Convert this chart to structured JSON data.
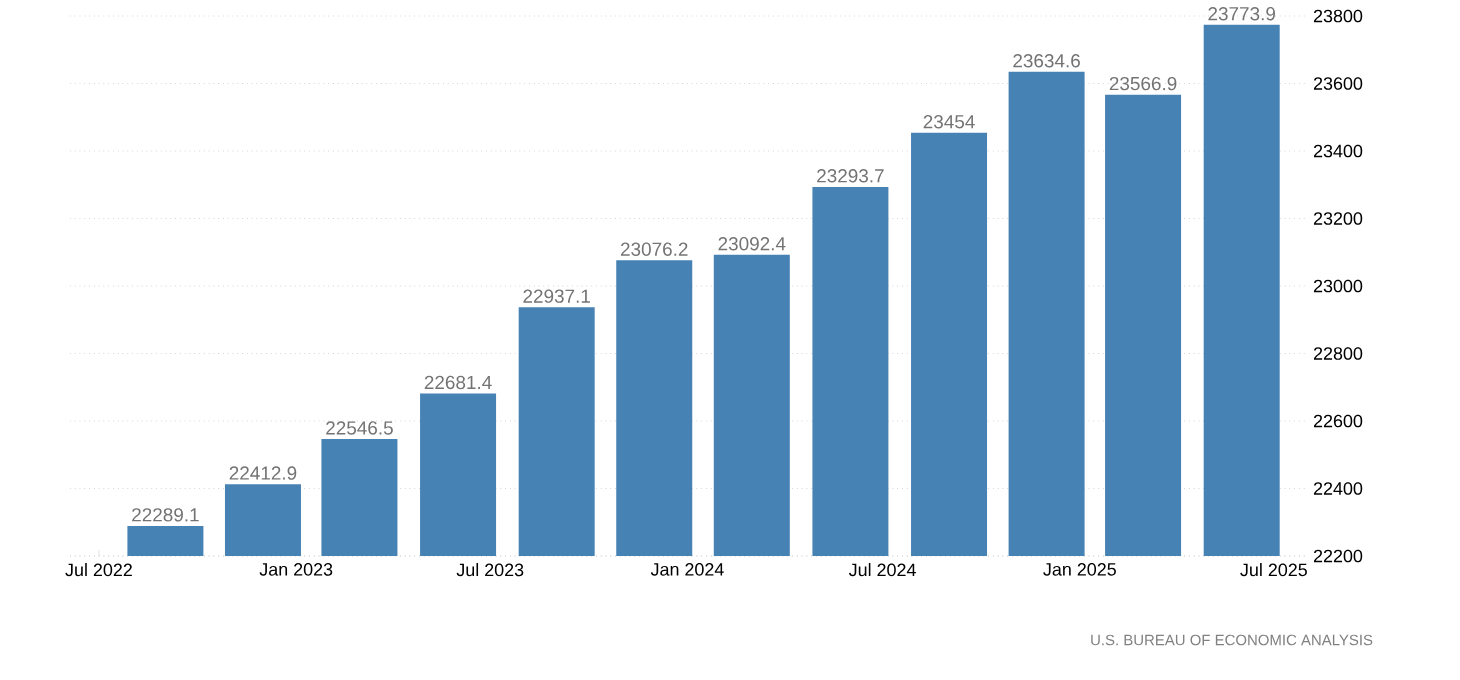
{
  "chart_data": {
    "type": "bar",
    "x": [
      "2022-09-01",
      "2022-12-01",
      "2023-03-01",
      "2023-06-01",
      "2023-09-01",
      "2023-12-01",
      "2024-03-01",
      "2024-06-01",
      "2024-09-01",
      "2024-12-01",
      "2025-03-01",
      "2025-06-01"
    ],
    "values": [
      22289.1,
      22412.9,
      22546.5,
      22681.4,
      22937.1,
      23076.2,
      23092.4,
      23293.7,
      23454,
      23634.6,
      23566.9,
      23773.9
    ],
    "color": "#4682b4",
    "data_labels": true,
    "xlim": [
      "2022-06-04",
      "2025-07-31"
    ],
    "xticks": [
      {
        "value": "2022-07-01",
        "label": "Jul 2022"
      },
      {
        "value": "2023-01-01",
        "label": "Jan 2023"
      },
      {
        "value": "2023-07-01",
        "label": "Jul 2023"
      },
      {
        "value": "2024-01-01",
        "label": "Jan 2024"
      },
      {
        "value": "2024-07-01",
        "label": "Jul 2024"
      },
      {
        "value": "2025-01-01",
        "label": "Jan 2025"
      },
      {
        "value": "2025-07-01",
        "label": "Jul 2025"
      }
    ],
    "ylim": [
      22200,
      23800
    ],
    "yticks": [
      22200,
      22400,
      22600,
      22800,
      23000,
      23200,
      23400,
      23600,
      23800
    ],
    "grid": "y",
    "annotations": [
      "U.S. BUREAU OF ECONOMIC ANALYSIS"
    ]
  }
}
